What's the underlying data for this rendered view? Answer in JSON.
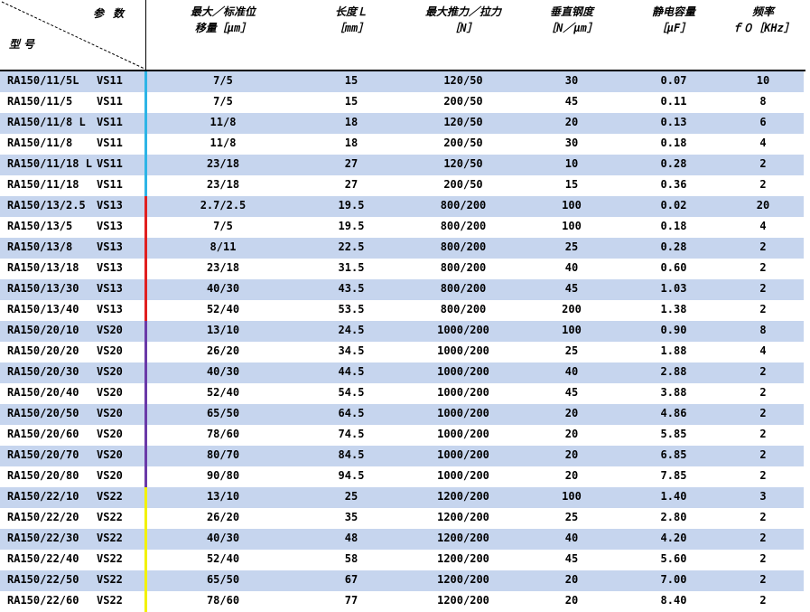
{
  "header": {
    "corner_top": "参数",
    "corner_bottom": "型号",
    "columns": [
      {
        "line1": "最大／标准位",
        "line2": "移量［μm］"
      },
      {
        "line1": "长度Ｌ",
        "line2": "［mm］"
      },
      {
        "line1": "最大推力／拉力",
        "line2": "［N］"
      },
      {
        "line1": "垂直钢度",
        "line2": "［N／μm］"
      },
      {
        "line1": "静电容量",
        "line2": "［μF］"
      },
      {
        "line1": "频率",
        "line2": "ｆ０［KHz］"
      }
    ]
  },
  "group_colors": {
    "VS11": "#2eb4e6",
    "VS13": "#e02020",
    "VS20": "#6a3aa8",
    "VS22": "#f2f200"
  },
  "rows": [
    {
      "model": "RA150/11/5L",
      "series": "VS11",
      "disp": "7/5",
      "len": "15",
      "force": "120/50",
      "stiff": "30",
      "cap": "0.07",
      "freq": "10"
    },
    {
      "model": "RA150/11/5",
      "series": "VS11",
      "disp": "7/5",
      "len": "15",
      "force": "200/50",
      "stiff": "45",
      "cap": "0.11",
      "freq": "8"
    },
    {
      "model": "RA150/11/8 L",
      "series": "VS11",
      "disp": "11/8",
      "len": "18",
      "force": "120/50",
      "stiff": "20",
      "cap": "0.13",
      "freq": "6"
    },
    {
      "model": "RA150/11/8",
      "series": "VS11",
      "disp": "11/8",
      "len": "18",
      "force": "200/50",
      "stiff": "30",
      "cap": "0.18",
      "freq": "4"
    },
    {
      "model": "RA150/11/18 L",
      "series": "VS11",
      "disp": "23/18",
      "len": "27",
      "force": "120/50",
      "stiff": "10",
      "cap": "0.28",
      "freq": "2"
    },
    {
      "model": "RA150/11/18",
      "series": "VS11",
      "disp": "23/18",
      "len": "27",
      "force": "200/50",
      "stiff": "15",
      "cap": "0.36",
      "freq": "2"
    },
    {
      "model": "RA150/13/2.5",
      "series": "VS13",
      "disp": "2.7/2.5",
      "len": "19.5",
      "force": "800/200",
      "stiff": "100",
      "cap": "0.02",
      "freq": "20"
    },
    {
      "model": "RA150/13/5",
      "series": "VS13",
      "disp": "7/5",
      "len": "19.5",
      "force": "800/200",
      "stiff": "100",
      "cap": "0.18",
      "freq": "4"
    },
    {
      "model": "RA150/13/8",
      "series": "VS13",
      "disp": "8/11",
      "len": "22.5",
      "force": "800/200",
      "stiff": "25",
      "cap": "0.28",
      "freq": "2"
    },
    {
      "model": "RA150/13/18",
      "series": "VS13",
      "disp": "23/18",
      "len": "31.5",
      "force": "800/200",
      "stiff": "40",
      "cap": "0.60",
      "freq": "2"
    },
    {
      "model": "RA150/13/30",
      "series": "VS13",
      "disp": "40/30",
      "len": "43.5",
      "force": "800/200",
      "stiff": "45",
      "cap": "1.03",
      "freq": "2"
    },
    {
      "model": "RA150/13/40",
      "series": "VS13",
      "disp": "52/40",
      "len": "53.5",
      "force": "800/200",
      "stiff": "200",
      "cap": "1.38",
      "freq": "2"
    },
    {
      "model": "RA150/20/10",
      "series": "VS20",
      "disp": "13/10",
      "len": "24.5",
      "force": "1000/200",
      "stiff": "100",
      "cap": "0.90",
      "freq": "8"
    },
    {
      "model": "RA150/20/20",
      "series": "VS20",
      "disp": "26/20",
      "len": "34.5",
      "force": "1000/200",
      "stiff": "25",
      "cap": "1.88",
      "freq": "4"
    },
    {
      "model": "RA150/20/30",
      "series": "VS20",
      "disp": "40/30",
      "len": "44.5",
      "force": "1000/200",
      "stiff": "40",
      "cap": "2.88",
      "freq": "2"
    },
    {
      "model": "RA150/20/40",
      "series": "VS20",
      "disp": "52/40",
      "len": "54.5",
      "force": "1000/200",
      "stiff": "45",
      "cap": "3.88",
      "freq": "2"
    },
    {
      "model": "RA150/20/50",
      "series": "VS20",
      "disp": "65/50",
      "len": "64.5",
      "force": "1000/200",
      "stiff": "20",
      "cap": "4.86",
      "freq": "2"
    },
    {
      "model": "RA150/20/60",
      "series": "VS20",
      "disp": "78/60",
      "len": "74.5",
      "force": "1000/200",
      "stiff": "20",
      "cap": "5.85",
      "freq": "2"
    },
    {
      "model": "RA150/20/70",
      "series": "VS20",
      "disp": "80/70",
      "len": "84.5",
      "force": "1000/200",
      "stiff": "20",
      "cap": "6.85",
      "freq": "2"
    },
    {
      "model": "RA150/20/80",
      "series": "VS20",
      "disp": "90/80",
      "len": "94.5",
      "force": "1000/200",
      "stiff": "20",
      "cap": "7.85",
      "freq": "2"
    },
    {
      "model": "RA150/22/10",
      "series": "VS22",
      "disp": "13/10",
      "len": "25",
      "force": "1200/200",
      "stiff": "100",
      "cap": "1.40",
      "freq": "3"
    },
    {
      "model": "RA150/22/20",
      "series": "VS22",
      "disp": "26/20",
      "len": "35",
      "force": "1200/200",
      "stiff": "25",
      "cap": "2.80",
      "freq": "2"
    },
    {
      "model": "RA150/22/30",
      "series": "VS22",
      "disp": "40/30",
      "len": "48",
      "force": "1200/200",
      "stiff": "40",
      "cap": "4.20",
      "freq": "2"
    },
    {
      "model": "RA150/22/40",
      "series": "VS22",
      "disp": "52/40",
      "len": "58",
      "force": "1200/200",
      "stiff": "45",
      "cap": "5.60",
      "freq": "2"
    },
    {
      "model": "RA150/22/50",
      "series": "VS22",
      "disp": "65/50",
      "len": "67",
      "force": "1200/200",
      "stiff": "20",
      "cap": "7.00",
      "freq": "2"
    },
    {
      "model": "RA150/22/60",
      "series": "VS22",
      "disp": "78/60",
      "len": "77",
      "force": "1200/200",
      "stiff": "20",
      "cap": "8.40",
      "freq": "2"
    }
  ]
}
